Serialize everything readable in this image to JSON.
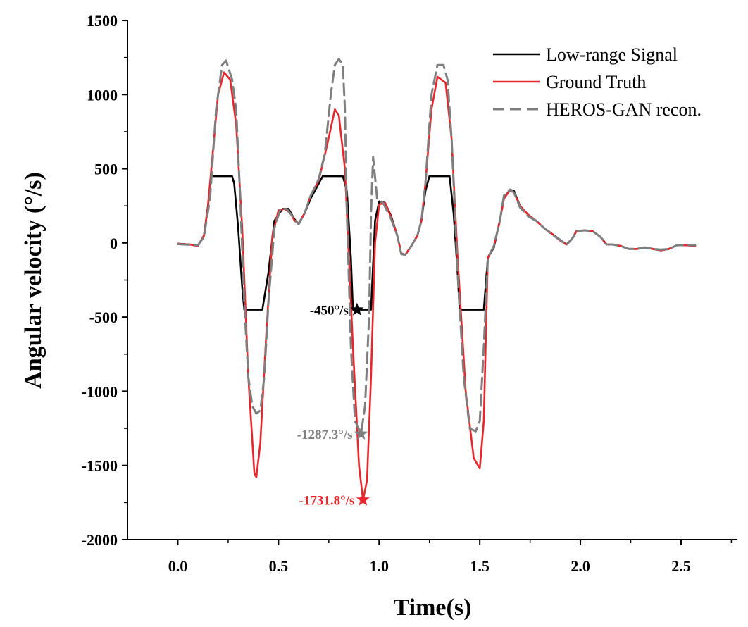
{
  "chart_data": {
    "type": "line",
    "title": "",
    "xlabel": "Time(s)",
    "ylabel": "Angular velocity (°/s)",
    "xlim": [
      -0.25,
      2.78
    ],
    "ylim": [
      -2000,
      1500
    ],
    "x_ticks": [
      0.0,
      0.5,
      1.0,
      1.5,
      2.0,
      2.5
    ],
    "x_tick_labels": [
      "0.0",
      "0.5",
      "1.0",
      "1.5",
      "2.0",
      "2.5"
    ],
    "y_ticks": [
      -2000,
      -1500,
      -1000,
      -500,
      0,
      500,
      1000,
      1500
    ],
    "y_tick_labels": [
      "-2000",
      "-1500",
      "-1000",
      "-500",
      "0",
      "500",
      "1000",
      "1500"
    ],
    "grid": false,
    "legend_position": "top-right",
    "series": [
      {
        "name": "Low-range Signal",
        "color": "#000000",
        "style": "solid",
        "points": [
          [
            0.0,
            -5
          ],
          [
            0.06,
            -10
          ],
          [
            0.1,
            -20
          ],
          [
            0.13,
            50
          ],
          [
            0.15,
            250
          ],
          [
            0.165,
            450
          ],
          [
            0.27,
            450
          ],
          [
            0.28,
            400
          ],
          [
            0.3,
            100
          ],
          [
            0.32,
            -300
          ],
          [
            0.33,
            -450
          ],
          [
            0.42,
            -450
          ],
          [
            0.45,
            -200
          ],
          [
            0.48,
            150
          ],
          [
            0.52,
            230
          ],
          [
            0.55,
            230
          ],
          [
            0.58,
            160
          ],
          [
            0.6,
            130
          ],
          [
            0.63,
            200
          ],
          [
            0.66,
            300
          ],
          [
            0.7,
            400
          ],
          [
            0.72,
            450
          ],
          [
            0.82,
            450
          ],
          [
            0.84,
            350
          ],
          [
            0.86,
            -100
          ],
          [
            0.87,
            -450
          ],
          [
            0.96,
            -450
          ],
          [
            0.98,
            150
          ],
          [
            1.0,
            280
          ],
          [
            1.03,
            270
          ],
          [
            1.06,
            180
          ],
          [
            1.09,
            50
          ],
          [
            1.11,
            -70
          ],
          [
            1.13,
            -80
          ],
          [
            1.16,
            -20
          ],
          [
            1.19,
            50
          ],
          [
            1.21,
            150
          ],
          [
            1.23,
            350
          ],
          [
            1.25,
            450
          ],
          [
            1.35,
            450
          ],
          [
            1.37,
            200
          ],
          [
            1.39,
            -200
          ],
          [
            1.4,
            -450
          ],
          [
            1.52,
            -450
          ],
          [
            1.54,
            -100
          ],
          [
            1.57,
            -30
          ],
          [
            1.6,
            150
          ],
          [
            1.62,
            300
          ],
          [
            1.65,
            360
          ],
          [
            1.67,
            350
          ],
          [
            1.7,
            250
          ],
          [
            1.74,
            190
          ],
          [
            1.78,
            150
          ],
          [
            1.82,
            100
          ],
          [
            1.86,
            60
          ],
          [
            1.9,
            20
          ],
          [
            1.93,
            -10
          ],
          [
            1.96,
            30
          ],
          [
            1.98,
            80
          ],
          [
            2.02,
            85
          ],
          [
            2.06,
            80
          ],
          [
            2.1,
            40
          ],
          [
            2.13,
            -10
          ],
          [
            2.16,
            -10
          ],
          [
            2.2,
            -20
          ],
          [
            2.24,
            -40
          ],
          [
            2.28,
            -40
          ],
          [
            2.32,
            -30
          ],
          [
            2.36,
            -40
          ],
          [
            2.4,
            -50
          ],
          [
            2.44,
            -40
          ],
          [
            2.48,
            -15
          ],
          [
            2.52,
            -15
          ],
          [
            2.57,
            -20
          ]
        ]
      },
      {
        "name": "Ground Truth",
        "color": "#e8262b",
        "style": "solid",
        "points": [
          [
            0.0,
            -5
          ],
          [
            0.06,
            -10
          ],
          [
            0.1,
            -20
          ],
          [
            0.13,
            50
          ],
          [
            0.15,
            250
          ],
          [
            0.17,
            550
          ],
          [
            0.2,
            1000
          ],
          [
            0.23,
            1150
          ],
          [
            0.26,
            1100
          ],
          [
            0.29,
            800
          ],
          [
            0.32,
            100
          ],
          [
            0.35,
            -900
          ],
          [
            0.38,
            -1550
          ],
          [
            0.39,
            -1580
          ],
          [
            0.41,
            -1350
          ],
          [
            0.44,
            -600
          ],
          [
            0.47,
            50
          ],
          [
            0.5,
            220
          ],
          [
            0.53,
            230
          ],
          [
            0.56,
            200
          ],
          [
            0.58,
            150
          ],
          [
            0.6,
            130
          ],
          [
            0.63,
            200
          ],
          [
            0.66,
            320
          ],
          [
            0.7,
            420
          ],
          [
            0.74,
            650
          ],
          [
            0.78,
            900
          ],
          [
            0.8,
            860
          ],
          [
            0.83,
            500
          ],
          [
            0.85,
            -100
          ],
          [
            0.87,
            -700
          ],
          [
            0.9,
            -1500
          ],
          [
            0.92,
            -1731.8
          ],
          [
            0.94,
            -1600
          ],
          [
            0.96,
            -900
          ],
          [
            0.98,
            0
          ],
          [
            1.0,
            260
          ],
          [
            1.03,
            270
          ],
          [
            1.06,
            170
          ],
          [
            1.09,
            50
          ],
          [
            1.11,
            -70
          ],
          [
            1.13,
            -80
          ],
          [
            1.16,
            -20
          ],
          [
            1.19,
            50
          ],
          [
            1.21,
            150
          ],
          [
            1.23,
            400
          ],
          [
            1.26,
            900
          ],
          [
            1.29,
            1120
          ],
          [
            1.33,
            1080
          ],
          [
            1.36,
            700
          ],
          [
            1.39,
            -100
          ],
          [
            1.43,
            -1000
          ],
          [
            1.47,
            -1450
          ],
          [
            1.5,
            -1520
          ],
          [
            1.52,
            -1200
          ],
          [
            1.54,
            -100
          ],
          [
            1.57,
            -20
          ],
          [
            1.6,
            150
          ],
          [
            1.62,
            300
          ],
          [
            1.65,
            355
          ],
          [
            1.67,
            340
          ],
          [
            1.7,
            250
          ],
          [
            1.74,
            190
          ],
          [
            1.78,
            150
          ],
          [
            1.82,
            100
          ],
          [
            1.86,
            60
          ],
          [
            1.9,
            15
          ],
          [
            1.93,
            -10
          ],
          [
            1.96,
            30
          ],
          [
            1.98,
            80
          ],
          [
            2.02,
            85
          ],
          [
            2.06,
            80
          ],
          [
            2.1,
            40
          ],
          [
            2.13,
            -10
          ],
          [
            2.16,
            -10
          ],
          [
            2.2,
            -20
          ],
          [
            2.24,
            -40
          ],
          [
            2.28,
            -40
          ],
          [
            2.32,
            -30
          ],
          [
            2.36,
            -40
          ],
          [
            2.4,
            -50
          ],
          [
            2.44,
            -40
          ],
          [
            2.48,
            -15
          ],
          [
            2.52,
            -15
          ],
          [
            2.57,
            -20
          ]
        ]
      },
      {
        "name": "HEROS-GAN recon.",
        "color": "#7f7f7f",
        "style": "dashed",
        "points": [
          [
            0.0,
            -8
          ],
          [
            0.06,
            -12
          ],
          [
            0.1,
            -15
          ],
          [
            0.13,
            40
          ],
          [
            0.16,
            300
          ],
          [
            0.19,
            900
          ],
          [
            0.22,
            1200
          ],
          [
            0.24,
            1230
          ],
          [
            0.27,
            1100
          ],
          [
            0.29,
            900
          ],
          [
            0.31,
            300
          ],
          [
            0.33,
            -400
          ],
          [
            0.35,
            -900
          ],
          [
            0.37,
            -1100
          ],
          [
            0.39,
            -1150
          ],
          [
            0.41,
            -1130
          ],
          [
            0.43,
            -900
          ],
          [
            0.45,
            -400
          ],
          [
            0.48,
            100
          ],
          [
            0.51,
            230
          ],
          [
            0.54,
            230
          ],
          [
            0.57,
            180
          ],
          [
            0.6,
            125
          ],
          [
            0.63,
            200
          ],
          [
            0.66,
            320
          ],
          [
            0.7,
            430
          ],
          [
            0.73,
            600
          ],
          [
            0.76,
            1000
          ],
          [
            0.78,
            1200
          ],
          [
            0.8,
            1240
          ],
          [
            0.82,
            1200
          ],
          [
            0.83,
            900
          ],
          [
            0.84,
            200
          ],
          [
            0.86,
            -700
          ],
          [
            0.88,
            -1200
          ],
          [
            0.91,
            -1287.3
          ],
          [
            0.93,
            -1100
          ],
          [
            0.95,
            -500
          ],
          [
            0.96,
            200
          ],
          [
            0.97,
            580
          ],
          [
            0.99,
            300
          ],
          [
            1.02,
            270
          ],
          [
            1.06,
            160
          ],
          [
            1.09,
            50
          ],
          [
            1.11,
            -75
          ],
          [
            1.13,
            -80
          ],
          [
            1.16,
            -20
          ],
          [
            1.19,
            50
          ],
          [
            1.21,
            150
          ],
          [
            1.23,
            400
          ],
          [
            1.26,
            1000
          ],
          [
            1.29,
            1200
          ],
          [
            1.32,
            1200
          ],
          [
            1.34,
            1100
          ],
          [
            1.36,
            700
          ],
          [
            1.39,
            -200
          ],
          [
            1.42,
            -900
          ],
          [
            1.45,
            -1250
          ],
          [
            1.48,
            -1270
          ],
          [
            1.5,
            -1200
          ],
          [
            1.52,
            -700
          ],
          [
            1.54,
            -100
          ],
          [
            1.57,
            -20
          ],
          [
            1.6,
            150
          ],
          [
            1.62,
            320
          ],
          [
            1.65,
            360
          ],
          [
            1.67,
            340
          ],
          [
            1.7,
            240
          ],
          [
            1.74,
            180
          ],
          [
            1.78,
            150
          ],
          [
            1.82,
            100
          ],
          [
            1.86,
            55
          ],
          [
            1.9,
            20
          ],
          [
            1.93,
            -15
          ],
          [
            1.96,
            30
          ],
          [
            1.98,
            80
          ],
          [
            2.02,
            85
          ],
          [
            2.06,
            80
          ],
          [
            2.1,
            40
          ],
          [
            2.13,
            -10
          ],
          [
            2.16,
            -10
          ],
          [
            2.2,
            -20
          ],
          [
            2.24,
            -40
          ],
          [
            2.28,
            -40
          ],
          [
            2.32,
            -30
          ],
          [
            2.36,
            -40
          ],
          [
            2.4,
            -45
          ],
          [
            2.44,
            -40
          ],
          [
            2.48,
            -15
          ],
          [
            2.52,
            -15
          ],
          [
            2.57,
            -15
          ]
        ]
      }
    ],
    "annotations": [
      {
        "text": "-450°/s",
        "x": 0.89,
        "y": -450,
        "color": "#000000",
        "marker": "star",
        "anchor": "left"
      },
      {
        "text": "-1287.3°/s",
        "x": 0.91,
        "y": -1287.3,
        "color": "#7f7f7f",
        "marker": "star",
        "anchor": "left"
      },
      {
        "text": "-1731.8°/s",
        "x": 0.92,
        "y": -1731.8,
        "color": "#e8262b",
        "marker": "star",
        "anchor": "left"
      }
    ]
  }
}
